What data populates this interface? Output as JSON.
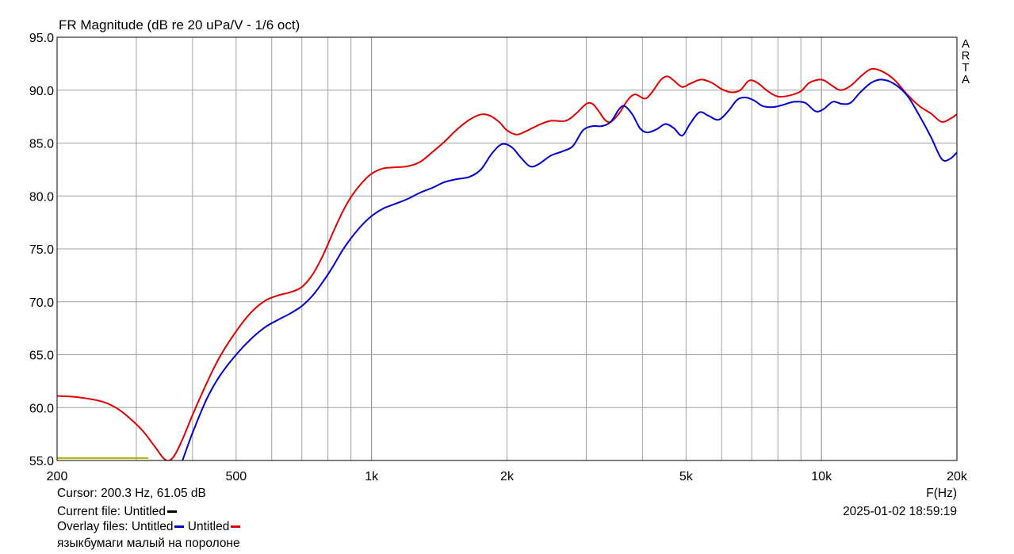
{
  "chart_data": {
    "type": "line",
    "title": "FR Magnitude (dB re 20 uPa/V - 1/6 oct)",
    "xlabel": "F(Hz)",
    "ylabel": "",
    "x_scale": "log",
    "xlim": [
      200,
      20000
    ],
    "ylim": [
      55.0,
      95.0
    ],
    "grid": true,
    "x_tick_labels": [
      {
        "value": 200,
        "label": "200"
      },
      {
        "value": 500,
        "label": "500"
      },
      {
        "value": 1000,
        "label": "1k"
      },
      {
        "value": 2000,
        "label": "2k"
      },
      {
        "value": 5000,
        "label": "5k"
      },
      {
        "value": 10000,
        "label": "10k"
      },
      {
        "value": 20000,
        "label": "20k"
      }
    ],
    "y_tick_labels": [
      {
        "value": 55.0,
        "label": "55.0"
      },
      {
        "value": 60.0,
        "label": "60.0"
      },
      {
        "value": 65.0,
        "label": "65.0"
      },
      {
        "value": 70.0,
        "label": "70.0"
      },
      {
        "value": 75.0,
        "label": "75.0"
      },
      {
        "value": 80.0,
        "label": "80.0"
      },
      {
        "value": 85.0,
        "label": "85.0"
      },
      {
        "value": 90.0,
        "label": "90.0"
      },
      {
        "value": 95.0,
        "label": "95.0"
      }
    ],
    "series": [
      {
        "color": "#e00000",
        "points": [
          [
            200,
            61.1
          ],
          [
            220,
            61.0
          ],
          [
            250,
            60.6
          ],
          [
            270,
            60.0
          ],
          [
            290,
            59.0
          ],
          [
            310,
            57.8
          ],
          [
            330,
            56.3
          ],
          [
            345,
            55.2
          ],
          [
            355,
            55.0
          ],
          [
            365,
            55.5
          ],
          [
            380,
            57.0
          ],
          [
            400,
            59.3
          ],
          [
            430,
            62.3
          ],
          [
            460,
            64.8
          ],
          [
            500,
            67.2
          ],
          [
            540,
            69.0
          ],
          [
            580,
            70.1
          ],
          [
            620,
            70.6
          ],
          [
            660,
            70.9
          ],
          [
            700,
            71.4
          ],
          [
            740,
            72.6
          ],
          [
            780,
            74.4
          ],
          [
            820,
            76.5
          ],
          [
            860,
            78.4
          ],
          [
            900,
            79.9
          ],
          [
            950,
            81.2
          ],
          [
            1000,
            82.1
          ],
          [
            1060,
            82.6
          ],
          [
            1120,
            82.7
          ],
          [
            1200,
            82.8
          ],
          [
            1280,
            83.2
          ],
          [
            1370,
            84.2
          ],
          [
            1450,
            85.1
          ],
          [
            1550,
            86.3
          ],
          [
            1650,
            87.2
          ],
          [
            1750,
            87.7
          ],
          [
            1830,
            87.6
          ],
          [
            1920,
            87.0
          ],
          [
            2000,
            86.2
          ],
          [
            2100,
            85.8
          ],
          [
            2200,
            86.1
          ],
          [
            2350,
            86.7
          ],
          [
            2500,
            87.1
          ],
          [
            2700,
            87.1
          ],
          [
            2850,
            87.8
          ],
          [
            3000,
            88.7
          ],
          [
            3100,
            88.7
          ],
          [
            3200,
            88.0
          ],
          [
            3300,
            87.2
          ],
          [
            3400,
            87.0
          ],
          [
            3550,
            87.8
          ],
          [
            3700,
            89.0
          ],
          [
            3850,
            89.6
          ],
          [
            4050,
            89.2
          ],
          [
            4200,
            89.8
          ],
          [
            4400,
            91.0
          ],
          [
            4550,
            91.3
          ],
          [
            4700,
            90.9
          ],
          [
            4900,
            90.3
          ],
          [
            5100,
            90.6
          ],
          [
            5400,
            91.0
          ],
          [
            5700,
            90.7
          ],
          [
            6000,
            90.1
          ],
          [
            6300,
            89.8
          ],
          [
            6600,
            90.0
          ],
          [
            6900,
            90.9
          ],
          [
            7200,
            90.7
          ],
          [
            7600,
            89.9
          ],
          [
            8000,
            89.4
          ],
          [
            8500,
            89.5
          ],
          [
            9000,
            89.9
          ],
          [
            9400,
            90.7
          ],
          [
            10000,
            91.0
          ],
          [
            10500,
            90.5
          ],
          [
            11000,
            90.0
          ],
          [
            11600,
            90.4
          ],
          [
            12300,
            91.4
          ],
          [
            12900,
            92.0
          ],
          [
            13600,
            91.8
          ],
          [
            14500,
            91.0
          ],
          [
            15500,
            89.6
          ],
          [
            16500,
            88.5
          ],
          [
            17500,
            87.8
          ],
          [
            18500,
            87.0
          ],
          [
            19500,
            87.4
          ],
          [
            20500,
            88.0
          ],
          [
            21200,
            87.7
          ],
          [
            22200,
            87.3
          ],
          [
            23200,
            86.7
          ]
        ]
      },
      {
        "color": "#0000d0",
        "points": [
          [
            380,
            55.0
          ],
          [
            400,
            57.6
          ],
          [
            430,
            60.8
          ],
          [
            460,
            63.0
          ],
          [
            500,
            65.0
          ],
          [
            540,
            66.5
          ],
          [
            580,
            67.6
          ],
          [
            620,
            68.3
          ],
          [
            660,
            68.9
          ],
          [
            700,
            69.6
          ],
          [
            740,
            70.6
          ],
          [
            780,
            71.9
          ],
          [
            820,
            73.3
          ],
          [
            860,
            74.8
          ],
          [
            900,
            76.0
          ],
          [
            950,
            77.2
          ],
          [
            1000,
            78.1
          ],
          [
            1060,
            78.8
          ],
          [
            1120,
            79.2
          ],
          [
            1200,
            79.7
          ],
          [
            1280,
            80.3
          ],
          [
            1370,
            80.8
          ],
          [
            1450,
            81.3
          ],
          [
            1550,
            81.6
          ],
          [
            1650,
            81.8
          ],
          [
            1750,
            82.5
          ],
          [
            1850,
            84.0
          ],
          [
            1950,
            84.9
          ],
          [
            2050,
            84.6
          ],
          [
            2150,
            83.6
          ],
          [
            2250,
            82.8
          ],
          [
            2350,
            83.0
          ],
          [
            2500,
            83.8
          ],
          [
            2650,
            84.2
          ],
          [
            2800,
            84.7
          ],
          [
            2950,
            86.2
          ],
          [
            3100,
            86.6
          ],
          [
            3250,
            86.6
          ],
          [
            3400,
            87.0
          ],
          [
            3550,
            88.2
          ],
          [
            3650,
            88.5
          ],
          [
            3800,
            87.7
          ],
          [
            3950,
            86.4
          ],
          [
            4100,
            86.0
          ],
          [
            4300,
            86.3
          ],
          [
            4500,
            86.8
          ],
          [
            4700,
            86.4
          ],
          [
            4900,
            85.7
          ],
          [
            5100,
            86.8
          ],
          [
            5350,
            87.9
          ],
          [
            5600,
            87.6
          ],
          [
            5900,
            87.2
          ],
          [
            6200,
            88.0
          ],
          [
            6500,
            89.1
          ],
          [
            6800,
            89.3
          ],
          [
            7100,
            89.0
          ],
          [
            7400,
            88.5
          ],
          [
            7800,
            88.4
          ],
          [
            8200,
            88.6
          ],
          [
            8700,
            88.9
          ],
          [
            9200,
            88.8
          ],
          [
            9700,
            88.0
          ],
          [
            10100,
            88.2
          ],
          [
            10600,
            88.9
          ],
          [
            11100,
            88.7
          ],
          [
            11600,
            88.8
          ],
          [
            12200,
            89.8
          ],
          [
            12900,
            90.7
          ],
          [
            13600,
            91.0
          ],
          [
            14500,
            90.6
          ],
          [
            15500,
            89.5
          ],
          [
            16500,
            87.6
          ],
          [
            17500,
            85.6
          ],
          [
            18500,
            83.5
          ],
          [
            19300,
            83.5
          ],
          [
            20200,
            84.3
          ],
          [
            21000,
            84.9
          ],
          [
            21700,
            85.0
          ],
          [
            22500,
            84.5
          ],
          [
            23200,
            83.0
          ]
        ]
      }
    ]
  },
  "artalogo": [
    "A",
    "R",
    "T",
    "A"
  ],
  "footer": {
    "cursor": "Cursor: 200.3 Hz, 61.05 dB",
    "current_file_label": "Current file: Untitled",
    "overlay_files_label": "Overlay files: Untitled",
    "overlay_second": "Untitled",
    "note": "языкбумаги малый на поролоне",
    "freq_label": "F(Hz)",
    "datetime": "2025-01-02   18:59:19"
  },
  "colors": {
    "grid": "#a0a0a0",
    "current_swatch": "#000000",
    "overlay_blue": "#0000d0",
    "overlay_red": "#e00000",
    "cursor_marker": "#b8b800"
  }
}
